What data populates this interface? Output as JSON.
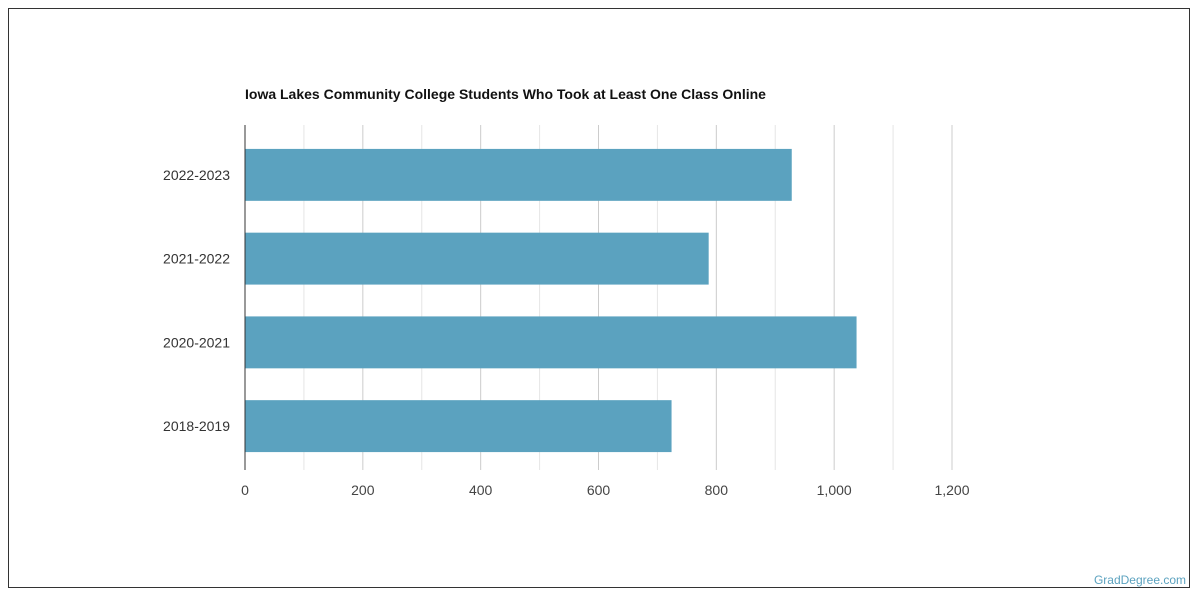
{
  "chart_data": {
    "type": "bar",
    "orientation": "horizontal",
    "title": "Iowa Lakes Community College Students Who Took at Least One Class Online",
    "categories": [
      "2022-2023",
      "2021-2022",
      "2020-2021",
      "2018-2019"
    ],
    "values": [
      928,
      787,
      1038,
      724
    ],
    "xlim": [
      0,
      1200
    ],
    "xticks": [
      0,
      200,
      400,
      600,
      800,
      1000,
      1200
    ],
    "xtick_labels": [
      "0",
      "200",
      "400",
      "600",
      "800",
      "1,000",
      "1,200"
    ],
    "grid": true,
    "bar_color": "#5ba2bf",
    "xlabel": "",
    "ylabel": ""
  },
  "brand": "GradDegree.com"
}
